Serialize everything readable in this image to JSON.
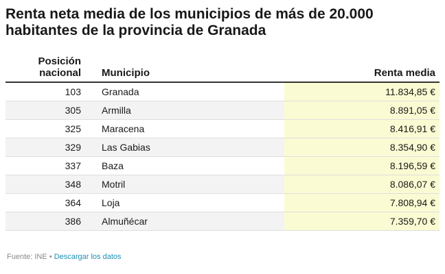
{
  "chart_data": {
    "type": "table",
    "title": "Renta neta media de los municipios de más de 20.000 habitantes de la provincia de Granada",
    "columns": [
      "Posición nacional",
      "Municipio",
      "Renta media"
    ],
    "rows": [
      {
        "posicion": "103",
        "municipio": "Granada",
        "renta": "11.834,85 €"
      },
      {
        "posicion": "305",
        "municipio": "Armilla",
        "renta": "8.891,05 €"
      },
      {
        "posicion": "325",
        "municipio": "Maracena",
        "renta": "8.416,91 €"
      },
      {
        "posicion": "329",
        "municipio": "Las Gabias",
        "renta": "8.354,90 €"
      },
      {
        "posicion": "337",
        "municipio": "Baza",
        "renta": "8.196,59 €"
      },
      {
        "posicion": "348",
        "municipio": "Motril",
        "renta": "8.086,07 €"
      },
      {
        "posicion": "364",
        "municipio": "Loja",
        "renta": "7.808,94 €"
      },
      {
        "posicion": "386",
        "municipio": "Almuñécar",
        "renta": "7.359,70 €"
      }
    ]
  },
  "colors": {
    "highlight_column": "#fbfbd3",
    "alt_row": "#f3f3f3",
    "link": "#1f8fb5"
  },
  "footer": {
    "source": "Fuente: INE",
    "separator": "•",
    "download_link": "Descargar los datos"
  }
}
